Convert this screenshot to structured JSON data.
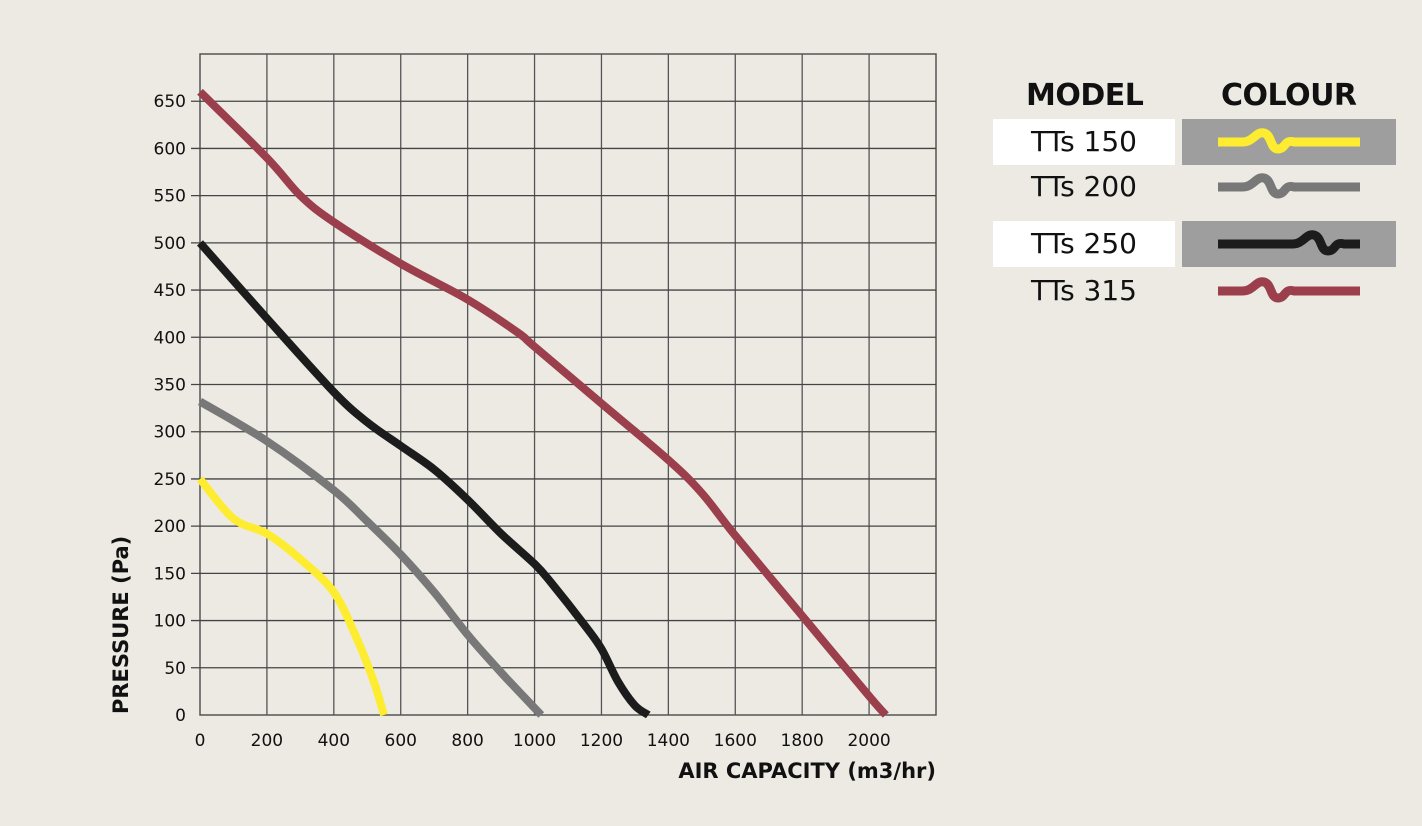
{
  "chart_data": {
    "type": "line",
    "xlabel": "AIR CAPACITY (m3/hr)",
    "ylabel": "PRESSURE (Pa)",
    "xlim": [
      0,
      2200
    ],
    "ylim": [
      0,
      700
    ],
    "xticks": [
      0,
      200,
      400,
      600,
      800,
      1000,
      1200,
      1400,
      1600,
      1800,
      2000
    ],
    "yticks": [
      0,
      50,
      100,
      150,
      200,
      250,
      300,
      350,
      400,
      450,
      500,
      550,
      600,
      650
    ],
    "grid": true,
    "legend_position": "right",
    "series": [
      {
        "name": "TTs 150",
        "color": "#fdec2f",
        "x": [
          0,
          100,
          200,
          300,
          400,
          470,
          520,
          550
        ],
        "y": [
          250,
          208,
          192,
          165,
          130,
          80,
          35,
          0
        ]
      },
      {
        "name": "TTs 200",
        "color": "#787878",
        "x": [
          0,
          200,
          400,
          500,
          600,
          700,
          800,
          900,
          1020
        ],
        "y": [
          332,
          290,
          238,
          205,
          170,
          130,
          85,
          45,
          0
        ]
      },
      {
        "name": "TTs 250",
        "color": "#1c1c1c",
        "x": [
          0,
          200,
          400,
          500,
          600,
          700,
          800,
          900,
          1000,
          1050,
          1150,
          1200,
          1250,
          1300,
          1340
        ],
        "y": [
          500,
          420,
          342,
          310,
          285,
          260,
          228,
          192,
          160,
          140,
          95,
          70,
          35,
          10,
          0
        ]
      },
      {
        "name": "TTs 315",
        "color": "#9b3f4c",
        "x": [
          0,
          200,
          300,
          400,
          600,
          800,
          950,
          1000,
          1200,
          1400,
          1500,
          1600,
          1800,
          2000,
          2050
        ],
        "y": [
          660,
          590,
          550,
          522,
          478,
          440,
          405,
          390,
          330,
          270,
          235,
          190,
          105,
          20,
          0
        ]
      }
    ]
  },
  "legend": {
    "model_header": "MODEL",
    "colour_header": "COLOUR",
    "rows": [
      {
        "label": "TTs 150",
        "color": "#fdec2f",
        "highlight": true
      },
      {
        "label": "TTs 200",
        "color": "#787878",
        "highlight": false
      },
      {
        "label": "TTs 250",
        "color": "#1c1c1c",
        "highlight": true
      },
      {
        "label": "TTs 315",
        "color": "#9b3f4c",
        "highlight": false
      }
    ]
  }
}
